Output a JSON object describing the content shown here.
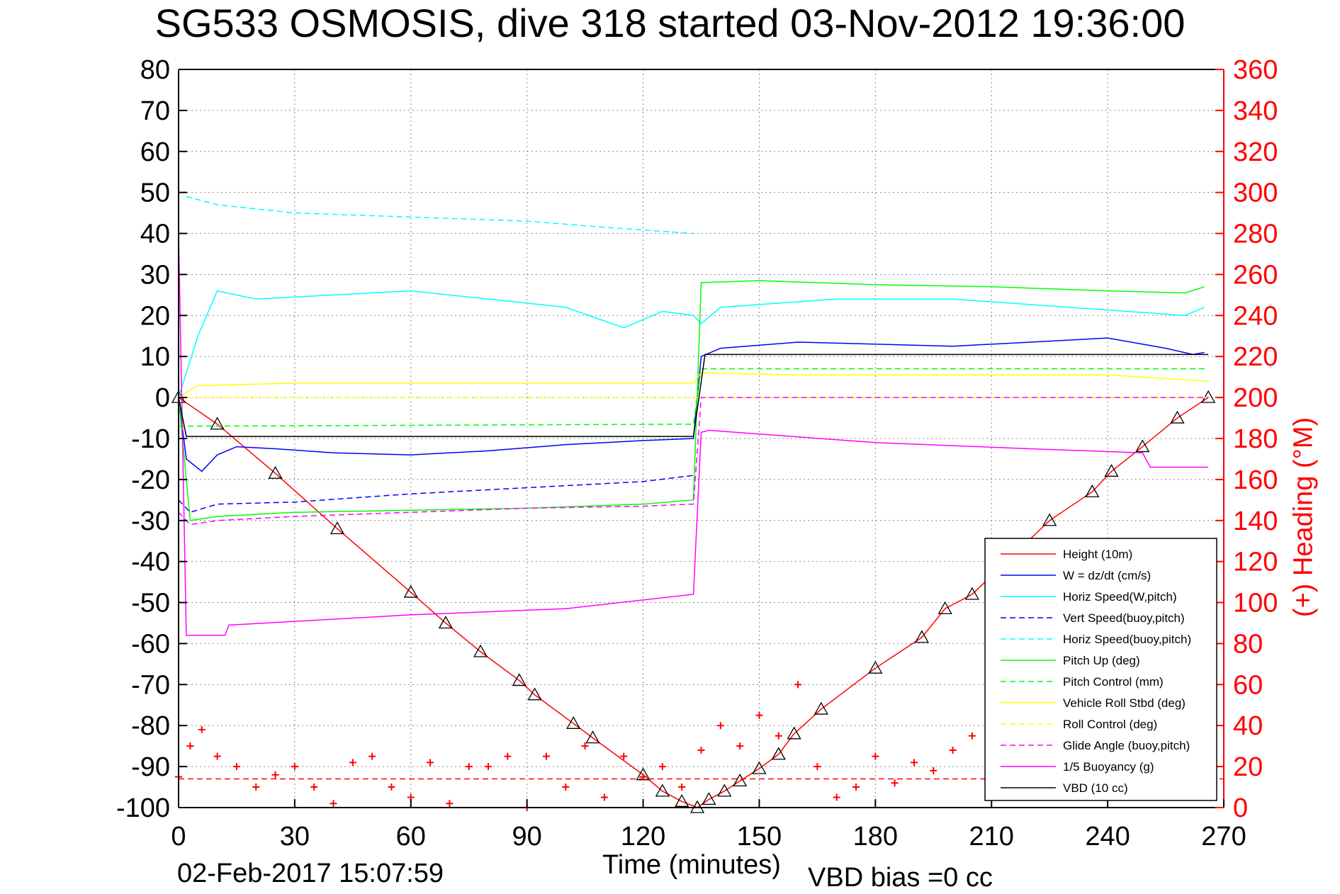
{
  "title": "SG533 OSMOSIS, dive 318 started 03-Nov-2012 19:36:00",
  "timestamp": "02-Feb-2017 15:07:59",
  "vbd_bias": "VBD bias =0 cc",
  "colors": {
    "height": "#ff0000",
    "w": "#0000ff",
    "horiz": "#00ffff",
    "pitch": "#00ff00",
    "roll": "#ffff00",
    "glide": "#ff00ff",
    "buoyancy": "#ff00ff",
    "vbd": "#000000",
    "heading": "#ff0000"
  },
  "chart_data": {
    "type": "line",
    "title": "SG533 OSMOSIS, dive 318 started 03-Nov-2012 19:36:00",
    "xlabel": "Time (minutes)",
    "ylabel": "",
    "y2label": "(+) Heading (°M)",
    "xlim": [
      0,
      270
    ],
    "ylim": [
      -100,
      80
    ],
    "y2lim": [
      0,
      360
    ],
    "xticks": [
      0,
      30,
      60,
      90,
      120,
      150,
      180,
      210,
      240,
      270
    ],
    "yticks": [
      80,
      70,
      60,
      50,
      40,
      30,
      20,
      10,
      0,
      -10,
      -20,
      -30,
      -40,
      -50,
      -60,
      -70,
      -80,
      -90,
      -100
    ],
    "y2ticks": [
      360,
      340,
      320,
      300,
      280,
      260,
      240,
      220,
      200,
      180,
      160,
      140,
      120,
      100,
      80,
      60,
      40,
      20,
      0
    ],
    "grid": true,
    "legend_position": "lower-right",
    "legend": [
      {
        "label": "Height (10m)",
        "color": "#ff0000",
        "style": "solid"
      },
      {
        "label": "W = dz/dt (cm/s)",
        "color": "#0000ff",
        "style": "solid"
      },
      {
        "label": "Horiz Speed(W,pitch)",
        "color": "#00ffff",
        "style": "solid"
      },
      {
        "label": "Vert Speed(buoy,pitch)",
        "color": "#0000ff",
        "style": "dashed"
      },
      {
        "label": "Horiz Speed(buoy,pitch)",
        "color": "#00ffff",
        "style": "dashed"
      },
      {
        "label": "Pitch Up (deg)",
        "color": "#00ff00",
        "style": "solid"
      },
      {
        "label": "Pitch Control (mm)",
        "color": "#00ff00",
        "style": "dashed"
      },
      {
        "label": "Vehicle Roll Stbd (deg)",
        "color": "#ffff00",
        "style": "solid"
      },
      {
        "label": "Roll Control (deg)",
        "color": "#ffff00",
        "style": "dashed"
      },
      {
        "label": "Glide Angle (buoy,pitch)",
        "color": "#ff00ff",
        "style": "dashed"
      },
      {
        "label": "1/5 Buoyancy (g)",
        "color": "#ff00ff",
        "style": "solid"
      },
      {
        "label": "VBD (10 cc)",
        "color": "#000000",
        "style": "solid"
      }
    ],
    "series": [
      {
        "name": "Height (10m)",
        "color": "#ff0000",
        "dash": false,
        "x": [
          0,
          10,
          25,
          41,
          60,
          69,
          78,
          88,
          92,
          102,
          107,
          120,
          125,
          130,
          134,
          137,
          141,
          145,
          150,
          155,
          159,
          166,
          180,
          192,
          198,
          205,
          225,
          236,
          241,
          249,
          258,
          266
        ],
        "y": [
          0,
          -6.5,
          -18.5,
          -32,
          -47.5,
          -55,
          -62,
          -69,
          -72.5,
          -79.5,
          -83,
          -92,
          -96,
          -98.5,
          -100,
          -98,
          -96,
          -93.5,
          -90.5,
          -87,
          -82,
          -76,
          -66,
          -58.5,
          -51.5,
          -48,
          -30,
          -23,
          -18,
          -12,
          -5,
          0
        ]
      },
      {
        "name": "W = dz/dt (cm/s)",
        "color": "#0000ff",
        "dash": false,
        "x": [
          0,
          2,
          6,
          10,
          15,
          25,
          40,
          60,
          80,
          100,
          120,
          133,
          135,
          140,
          160,
          200,
          240,
          255,
          262,
          265
        ],
        "y": [
          0,
          -15,
          -18,
          -14,
          -12,
          -12.5,
          -13.5,
          -14,
          -13,
          -11.5,
          -10.5,
          -10,
          10,
          12,
          13.5,
          12.5,
          14.5,
          12,
          10.5,
          11
        ]
      },
      {
        "name": "Horiz Speed(W,pitch)",
        "color": "#00ffff",
        "dash": false,
        "x": [
          0,
          5,
          10,
          20,
          40,
          60,
          80,
          100,
          115,
          125,
          133,
          135,
          140,
          170,
          200,
          230,
          260,
          265
        ],
        "y": [
          0,
          15,
          26,
          24,
          25,
          26,
          24,
          22,
          17,
          21,
          20,
          18,
          22,
          24,
          24,
          22,
          20,
          22
        ]
      },
      {
        "name": "Vert Speed(buoy,pitch)",
        "color": "#0000ff",
        "dash": true,
        "x": [
          0,
          3,
          10,
          30,
          60,
          90,
          120,
          133
        ],
        "y": [
          -25,
          -28,
          -26,
          -25.5,
          -23.5,
          -22,
          -20.5,
          -19
        ]
      },
      {
        "name": "Horiz Speed(buoy,pitch)",
        "color": "#00ffff",
        "dash": true,
        "x": [
          2,
          10,
          30,
          60,
          90,
          110,
          133
        ],
        "y": [
          49,
          47,
          45,
          44,
          43,
          41.5,
          40
        ]
      },
      {
        "name": "Pitch Up (deg)",
        "color": "#00ff00",
        "dash": false,
        "x": [
          0,
          3,
          10,
          30,
          60,
          90,
          120,
          133,
          135,
          150,
          180,
          210,
          240,
          260,
          265
        ],
        "y": [
          0,
          -30,
          -29,
          -28,
          -27.5,
          -27,
          -26,
          -25,
          28,
          28.5,
          27.5,
          27,
          26,
          25.5,
          27
        ]
      },
      {
        "name": "Pitch Control (mm)",
        "color": "#00ff00",
        "dash": true,
        "x": [
          0,
          2,
          133,
          135,
          266
        ],
        "y": [
          -7,
          -7,
          -6.5,
          7,
          7
        ]
      },
      {
        "name": "Vehicle Roll Stbd (deg)",
        "color": "#ffff00",
        "dash": false,
        "x": [
          0,
          5,
          10,
          30,
          60,
          90,
          120,
          133,
          135,
          160,
          200,
          240,
          266
        ],
        "y": [
          0,
          3,
          3,
          3.5,
          3.5,
          3.5,
          3.5,
          3.5,
          6,
          5.5,
          5.5,
          5.5,
          4
        ]
      },
      {
        "name": "Roll Control (deg)",
        "color": "#ffff00",
        "dash": true,
        "x": [
          0,
          266
        ],
        "y": [
          0,
          0
        ]
      },
      {
        "name": "Glide Angle (buoy,pitch)",
        "color": "#ff00ff",
        "dash": true,
        "x": [
          0,
          3,
          10,
          30,
          60,
          90,
          120,
          133,
          135,
          266
        ],
        "y": [
          -28,
          -31,
          -30,
          -29,
          -28,
          -27,
          -26.5,
          -26,
          0,
          0
        ]
      },
      {
        "name": "1/5 Buoyancy (g)",
        "color": "#ff00ff",
        "dash": false,
        "x": [
          0,
          2,
          12,
          13,
          60,
          100,
          133,
          135,
          137,
          180,
          220,
          249,
          251,
          266
        ],
        "y": [
          40,
          -58,
          -58,
          -55.5,
          -53,
          -51.5,
          -48,
          -8.5,
          -8,
          -11,
          -12.5,
          -13.5,
          -17,
          -17
        ]
      },
      {
        "name": "VBD (10 cc)",
        "color": "#000000",
        "dash": false,
        "x": [
          0,
          2,
          133,
          136,
          266
        ],
        "y": [
          0,
          -9.5,
          -9.5,
          10.5,
          10.5
        ]
      },
      {
        "name": "(+) Heading (°M)",
        "color": "#ff0000",
        "dash": false,
        "axis": "right",
        "marker": "+",
        "x": [
          0,
          3,
          6,
          10,
          15,
          20,
          25,
          30,
          35,
          40,
          45,
          50,
          55,
          60,
          65,
          70,
          75,
          80,
          85,
          90,
          95,
          100,
          105,
          110,
          115,
          120,
          125,
          130,
          135,
          140,
          145,
          150,
          155,
          160,
          165,
          170,
          175,
          180,
          185,
          190,
          195,
          200,
          205,
          210,
          215,
          220,
          225,
          230
        ],
        "y": [
          15,
          30,
          38,
          25,
          20,
          10,
          16,
          20,
          10,
          2,
          22,
          25,
          10,
          5,
          22,
          2,
          20,
          20,
          25,
          0,
          25,
          10,
          30,
          5,
          25,
          15,
          20,
          10,
          28,
          40,
          30,
          45,
          35,
          60,
          20,
          5,
          10,
          25,
          12,
          22,
          18,
          28,
          35,
          18,
          12,
          28,
          5,
          12
        ]
      }
    ],
    "reference_lines": [
      {
        "axis": "right",
        "y": 14,
        "color": "#ff0000",
        "dash": true
      }
    ]
  }
}
